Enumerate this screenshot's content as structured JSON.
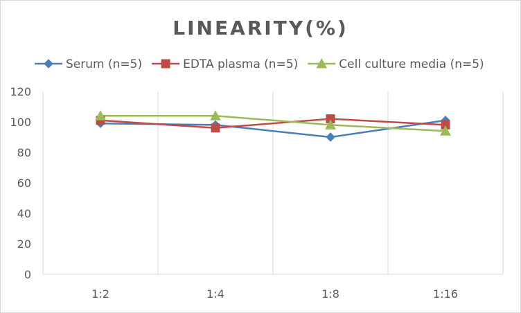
{
  "chart_data": {
    "type": "line",
    "title": "LINEARITY(%)",
    "xlabel": "",
    "ylabel": "",
    "categories": [
      "1:2",
      "1:4",
      "1:8",
      "1:16"
    ],
    "ylim": [
      0,
      120
    ],
    "yticks": [
      0,
      20,
      40,
      60,
      80,
      100,
      120
    ],
    "ytick_labels": [
      "0",
      "20",
      "40",
      "60",
      "80",
      "100",
      "120"
    ],
    "grid": "vertical",
    "legend_position": "top",
    "series": [
      {
        "name": "Serum (n=5)",
        "values": [
          99,
          98,
          90,
          101
        ],
        "color": "#4a7ebb",
        "marker": "diamond"
      },
      {
        "name": "EDTA plasma (n=5)",
        "values": [
          101,
          96,
          102,
          98
        ],
        "color": "#be4b48",
        "marker": "square"
      },
      {
        "name": "Cell culture media (n=5)",
        "values": [
          104,
          104,
          98,
          94
        ],
        "color": "#9bbb59",
        "marker": "triangle"
      }
    ]
  }
}
